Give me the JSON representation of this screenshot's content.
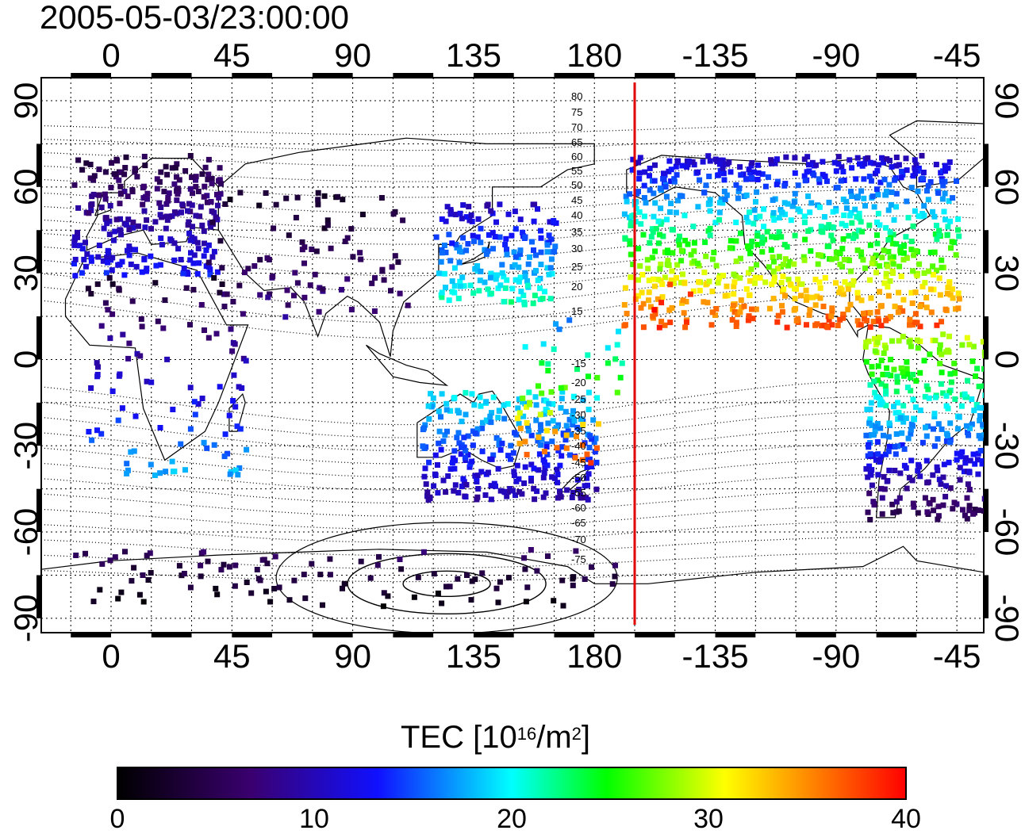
{
  "title": "2005-05-03/23:00:00",
  "map": {
    "projection": "equirectangular",
    "lon_range": [
      -26,
      325
    ],
    "lat_range": [
      -95,
      98
    ],
    "lon_ticks": [
      {
        "value": 0,
        "label": "0"
      },
      {
        "value": 45,
        "label": "45"
      },
      {
        "value": 90,
        "label": "90"
      },
      {
        "value": 135,
        "label": "135"
      },
      {
        "value": 180,
        "label": "180"
      },
      {
        "value": 225,
        "label": "-135"
      },
      {
        "value": 270,
        "label": "-90"
      },
      {
        "value": 315,
        "label": "-45"
      }
    ],
    "lat_ticks": [
      {
        "value": 90,
        "label": "90"
      },
      {
        "value": 60,
        "label": "60"
      },
      {
        "value": 30,
        "label": "30"
      },
      {
        "value": 0,
        "label": "0"
      },
      {
        "value": -30,
        "label": "-30"
      },
      {
        "value": -60,
        "label": "-60"
      },
      {
        "value": -90,
        "label": "-90"
      }
    ],
    "terminator_longitude": 195,
    "terminator_color": "#e00000",
    "magnetic_latitude_labels": [
      "80",
      "75",
      "70",
      "65",
      "60",
      "55",
      "50",
      "45",
      "40",
      "35",
      "30",
      "25",
      "20",
      "15",
      "-15",
      "-20",
      "-25",
      "-30",
      "-35",
      "-40",
      "-45",
      "-50",
      "-55",
      "-60",
      "-65",
      "-70",
      "-75"
    ]
  },
  "colorbar": {
    "title_prefix": "TEC  [10",
    "title_exp1": "16",
    "title_mid": "/m",
    "title_exp2": "2",
    "title_suffix": "]",
    "min": 0,
    "max": 40,
    "ticks": [
      "0",
      "10",
      "20",
      "30",
      "40"
    ],
    "colormap": [
      "#000000",
      "#3a0070",
      "#1010ff",
      "#00ffff",
      "#00ff00",
      "#ffff00",
      "#ff0000"
    ]
  },
  "tec_regions": [
    {
      "name": "europe",
      "lon": [
        -15,
        40
      ],
      "lat": [
        30,
        72
      ],
      "tec_low": 4,
      "tec_high": 13
    },
    {
      "name": "north-america",
      "lon": [
        190,
        315
      ],
      "lat": [
        12,
        72
      ],
      "tec_low": 10,
      "tec_high": 38
    },
    {
      "name": "east-asia",
      "lon": [
        120,
        165
      ],
      "lat": [
        20,
        55
      ],
      "tec_low": 10,
      "tec_high": 22
    },
    {
      "name": "australia",
      "lon": [
        115,
        180
      ],
      "lat": [
        -48,
        -10
      ],
      "tec_low": 9,
      "tec_high": 20
    },
    {
      "name": "south-america",
      "lon": [
        280,
        325
      ],
      "lat": [
        -55,
        10
      ],
      "tec_low": 4,
      "tec_high": 30
    },
    {
      "name": "hawaii-cluster",
      "lon": [
        200,
        215
      ],
      "lat": [
        17,
        28
      ],
      "tec_low": 36,
      "tec_high": 40
    },
    {
      "name": "central-asia",
      "lon": [
        35,
        110
      ],
      "lat": [
        15,
        60
      ],
      "tec_low": 2,
      "tec_high": 8
    },
    {
      "name": "africa",
      "lon": [
        -10,
        50
      ],
      "lat": [
        -40,
        30
      ],
      "tec_low": 3,
      "tec_high": 18
    },
    {
      "name": "antarctica",
      "lon": [
        -20,
        190
      ],
      "lat": [
        -85,
        -65
      ],
      "tec_low": 1,
      "tec_high": 6
    },
    {
      "name": "pacific",
      "lon": [
        150,
        190
      ],
      "lat": [
        -35,
        20
      ],
      "tec_low": 14,
      "tec_high": 38
    }
  ]
}
